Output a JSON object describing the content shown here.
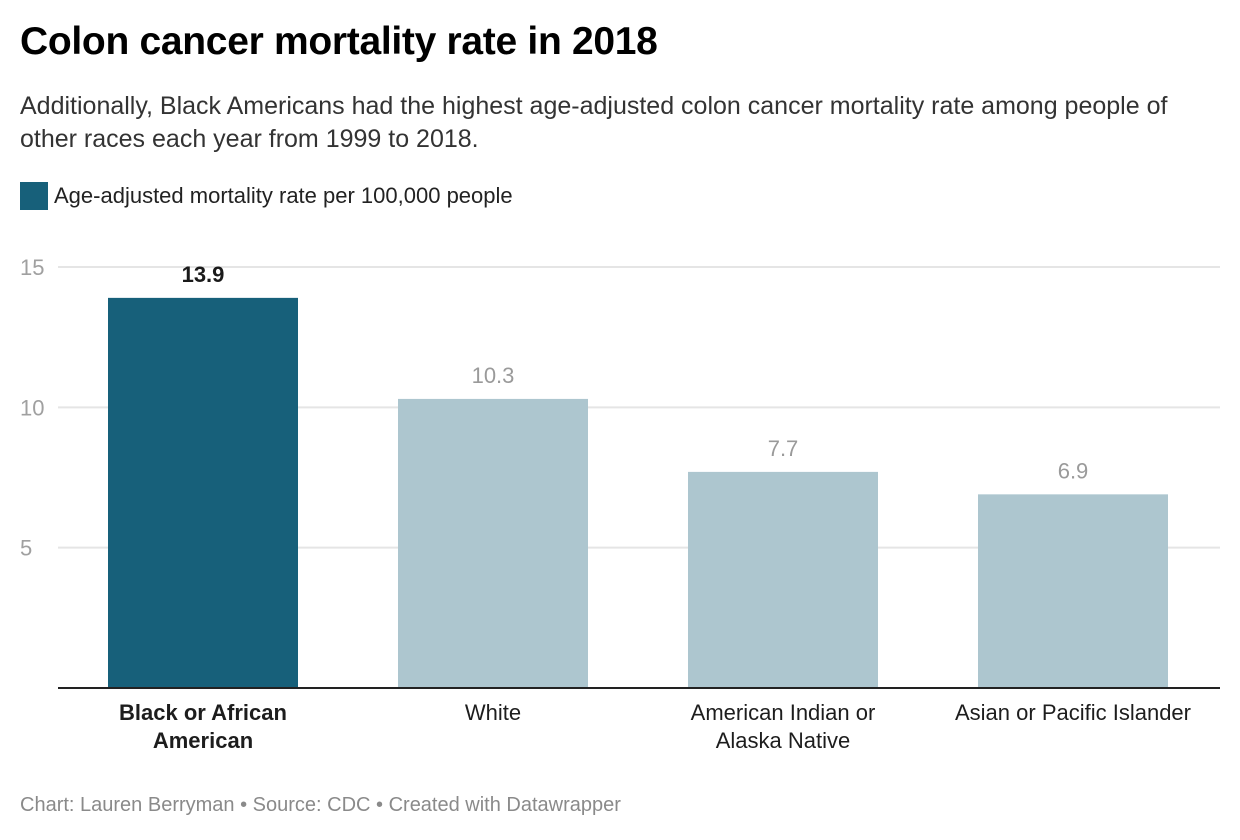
{
  "title": "Colon cancer mortality rate in 2018",
  "subtitle": "Additionally, Black Americans had the highest age-adjusted colon cancer mortality rate among people of other races each year from 1999 to 2018.",
  "legend": {
    "label": "Age-adjusted mortality rate per 100,000 people",
    "color": "#17607a"
  },
  "footer": "Chart: Lauren Berryman • Source: CDC • Created with Datawrapper",
  "colors": {
    "highlight": "#17607a",
    "default": "#adc6cf",
    "grid": "#e5e5e5",
    "axis": "#222222",
    "tick_text": "#a0a0a0",
    "value_text_default": "#9a9a9a",
    "value_text_highlight": "#1a1a1a"
  },
  "chart_data": {
    "type": "bar",
    "title": "Colon cancer mortality rate in 2018",
    "xlabel": "",
    "ylabel": "",
    "ylim": [
      0,
      15
    ],
    "yticks": [
      5,
      10,
      15
    ],
    "grid": true,
    "legend_position": "top-left",
    "categories": [
      "Black or African American",
      "White",
      "American Indian or Alaska Native",
      "Asian or Pacific Islander"
    ],
    "category_lines": [
      [
        "Black or African",
        "American"
      ],
      [
        "White"
      ],
      [
        "American Indian or",
        "Alaska Native"
      ],
      [
        "Asian or Pacific Islander"
      ]
    ],
    "values": [
      13.9,
      10.3,
      7.7,
      6.9
    ],
    "value_labels": [
      "13.9",
      "10.3",
      "7.7",
      "6.9"
    ],
    "highlighted": [
      true,
      false,
      false,
      false
    ],
    "series": [
      {
        "name": "Age-adjusted mortality rate per 100,000 people",
        "values": [
          13.9,
          10.3,
          7.7,
          6.9
        ]
      }
    ]
  }
}
